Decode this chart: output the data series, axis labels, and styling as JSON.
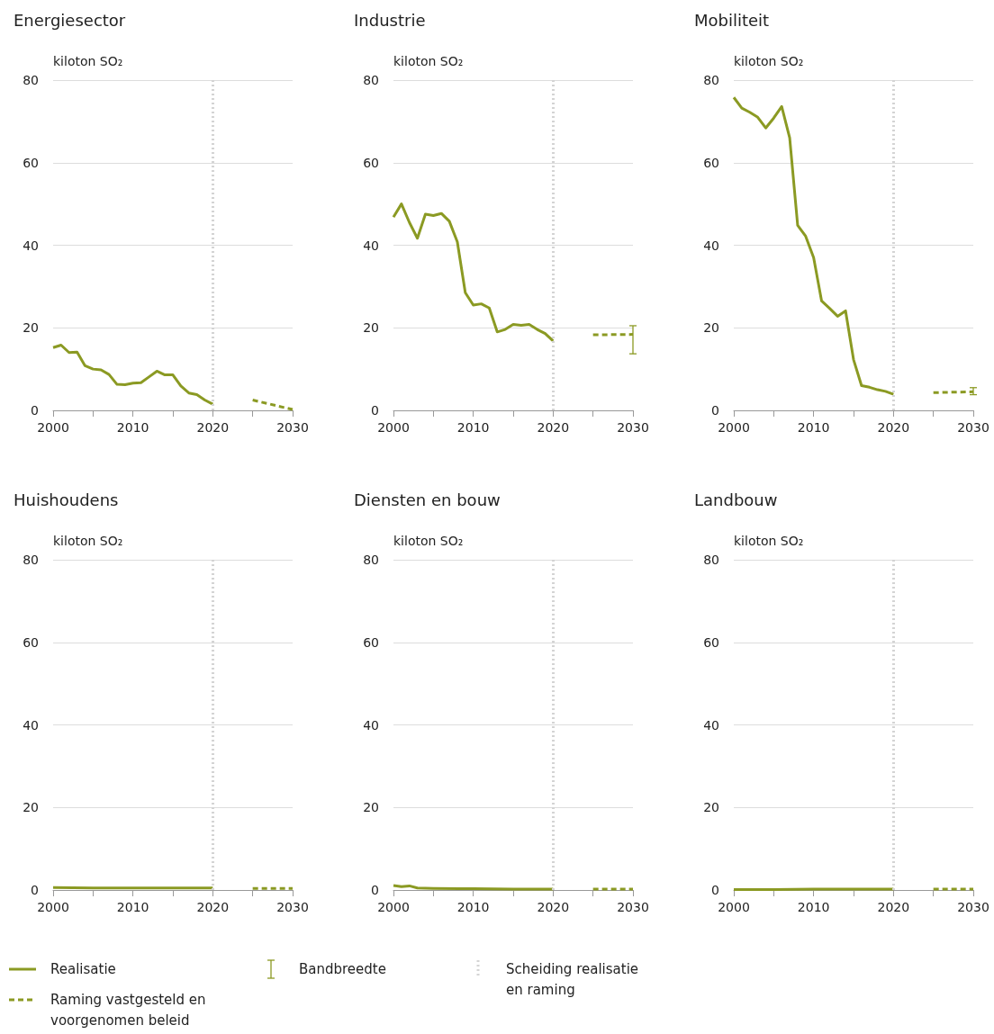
{
  "chart_data": [
    {
      "type": "line",
      "title": "Energiesector",
      "ylabel": "kiloton SO₂",
      "xlim": [
        2000,
        2030
      ],
      "xticks": [
        2000,
        {
          "value": 2005,
          "label": null
        },
        2010,
        {
          "value": 2015,
          "label": null
        },
        2020,
        {
          "value": 2025,
          "label": null
        },
        2030
      ],
      "ylim": [
        0,
        80
      ],
      "yticks": [
        0,
        20,
        40,
        60,
        80
      ],
      "grid": "y",
      "marker": "none",
      "legend": "bottom",
      "annotations": [
        "Bandbreedte"
      ],
      "ref_lines": [
        {
          "axis": "x",
          "value": 2020,
          "label": "Scheiding realisatie en raming",
          "color": "#d4d4d4",
          "line_style": "dotted"
        }
      ],
      "series": [
        {
          "name": "Realisatie",
          "color": "#8b9a23",
          "line_style": "solid",
          "x": [
            2000,
            2001,
            2002,
            2003,
            2004,
            2005,
            2006,
            2007,
            2008,
            2009,
            2010,
            2011,
            2012,
            2013,
            2014,
            2015,
            2016,
            2017,
            2018,
            2019,
            2020
          ],
          "values": [
            15.2,
            15.8,
            14.0,
            14.1,
            10.8,
            10.0,
            9.8,
            8.7,
            6.3,
            6.2,
            6.6,
            6.7,
            8.1,
            9.5,
            8.6,
            8.6,
            5.9,
            4.2,
            3.8,
            2.5,
            1.5
          ]
        },
        {
          "name": "Raming vastgesteld en voorgenomen beleid",
          "color": "#8b9a23",
          "line_style": "dashed",
          "x": [
            2025,
            2030
          ],
          "values": [
            2.5,
            0.2
          ]
        }
      ]
    },
    {
      "type": "line",
      "title": "Industrie",
      "ylabel": "kiloton SO₂",
      "xlim": [
        2000,
        2030
      ],
      "xticks": [
        2000,
        {
          "value": 2005,
          "label": null
        },
        2010,
        {
          "value": 2015,
          "label": null
        },
        2020,
        {
          "value": 2025,
          "label": null
        },
        2030
      ],
      "ylim": [
        0,
        80
      ],
      "yticks": [
        0,
        20,
        40,
        60,
        80
      ],
      "grid": "y",
      "marker": "none",
      "ref_lines": [
        {
          "axis": "x",
          "value": 2020,
          "label": null,
          "color": "#d4d4d4",
          "line_style": "dotted"
        }
      ],
      "series": [
        {
          "color": "#8b9a23",
          "line_style": "solid",
          "x": [
            2000,
            2001,
            2002,
            2003,
            2004,
            2005,
            2006,
            2007,
            2008,
            2009,
            2010,
            2011,
            2012,
            2013,
            2014,
            2015,
            2016,
            2017,
            2018,
            2019,
            2020
          ],
          "values": [
            46.8,
            50.0,
            45.5,
            41.7,
            47.5,
            47.2,
            47.7,
            45.8,
            40.8,
            28.5,
            25.5,
            25.8,
            24.8,
            19.0,
            19.6,
            20.8,
            20.6,
            20.8,
            19.6,
            18.6,
            16.8
          ]
        },
        {
          "color": "#8b9a23",
          "line_style": "dashed",
          "x": [
            2025,
            2030
          ],
          "values": [
            18.3,
            18.4
          ],
          "errors": [
            null,
            [
              13.7,
              20.5
            ]
          ]
        }
      ]
    },
    {
      "type": "line",
      "title": "Mobiliteit",
      "ylabel": "kiloton SO₂",
      "xlim": [
        2000,
        2030
      ],
      "xticks": [
        2000,
        {
          "value": 2005,
          "label": null
        },
        2010,
        {
          "value": 2015,
          "label": null
        },
        2020,
        {
          "value": 2025,
          "label": null
        },
        2030
      ],
      "ylim": [
        0,
        80
      ],
      "yticks": [
        0,
        20,
        40,
        60,
        80
      ],
      "grid": "y",
      "marker": "none",
      "ref_lines": [
        {
          "axis": "x",
          "value": 2020,
          "label": null,
          "color": "#d4d4d4",
          "line_style": "dotted"
        }
      ],
      "series": [
        {
          "color": "#8b9a23",
          "line_style": "solid",
          "x": [
            2000,
            2001,
            2002,
            2003,
            2004,
            2005,
            2006,
            2007,
            2008,
            2009,
            2010,
            2011,
            2012,
            2013,
            2014,
            2015,
            2016,
            2017,
            2018,
            2019,
            2020
          ],
          "values": [
            75.8,
            73.2,
            72.2,
            71.0,
            68.4,
            70.8,
            73.6,
            66.0,
            44.8,
            42.2,
            37.0,
            26.5,
            24.7,
            22.8,
            24.1,
            12.3,
            6.0,
            5.6,
            5.0,
            4.6,
            3.9
          ]
        },
        {
          "color": "#8b9a23",
          "line_style": "dashed",
          "x": [
            2025,
            2030
          ],
          "values": [
            4.3,
            4.5
          ],
          "errors": [
            null,
            [
              3.8,
              5.5
            ]
          ]
        }
      ]
    },
    {
      "type": "line",
      "title": "Huishoudens",
      "ylabel": "kiloton SO₂",
      "xlim": [
        2000,
        2030
      ],
      "xticks": [
        2000,
        {
          "value": 2005,
          "label": null
        },
        2010,
        {
          "value": 2015,
          "label": null
        },
        2020,
        {
          "value": 2025,
          "label": null
        },
        2030
      ],
      "ylim": [
        0,
        80
      ],
      "yticks": [
        0,
        20,
        40,
        60,
        80
      ],
      "grid": "y",
      "marker": "none",
      "ref_lines": [
        {
          "axis": "x",
          "value": 2020,
          "label": null,
          "color": "#d4d4d4",
          "line_style": "dotted"
        }
      ],
      "series": [
        {
          "color": "#8b9a23",
          "line_style": "solid",
          "x": [
            2000,
            2005,
            2010,
            2015,
            2020
          ],
          "values": [
            0.6,
            0.5,
            0.5,
            0.5,
            0.5
          ]
        },
        {
          "color": "#8b9a23",
          "line_style": "dashed",
          "x": [
            2025,
            2030
          ],
          "values": [
            0.4,
            0.4
          ]
        }
      ]
    },
    {
      "type": "line",
      "title": "Diensten en bouw",
      "ylabel": "kiloton SO₂",
      "xlim": [
        2000,
        2030
      ],
      "xticks": [
        2000,
        {
          "value": 2005,
          "label": null
        },
        2010,
        {
          "value": 2015,
          "label": null
        },
        2020,
        {
          "value": 2025,
          "label": null
        },
        2030
      ],
      "ylim": [
        0,
        80
      ],
      "yticks": [
        0,
        20,
        40,
        60,
        80
      ],
      "grid": "y",
      "marker": "none",
      "ref_lines": [
        {
          "axis": "x",
          "value": 2020,
          "label": null,
          "color": "#d4d4d4",
          "line_style": "dotted"
        }
      ],
      "series": [
        {
          "color": "#8b9a23",
          "line_style": "solid",
          "x": [
            2000,
            2001,
            2002,
            2003,
            2005,
            2010,
            2015,
            2020
          ],
          "values": [
            1.1,
            0.8,
            1.0,
            0.5,
            0.4,
            0.3,
            0.2,
            0.2
          ]
        },
        {
          "color": "#8b9a23",
          "line_style": "dashed",
          "x": [
            2025,
            2030
          ],
          "values": [
            0.2,
            0.2
          ]
        }
      ]
    },
    {
      "type": "line",
      "title": "Landbouw",
      "ylabel": "kiloton SO₂",
      "xlim": [
        2000,
        2030
      ],
      "xticks": [
        2000,
        {
          "value": 2005,
          "label": null
        },
        2010,
        {
          "value": 2015,
          "label": null
        },
        2020,
        {
          "value": 2025,
          "label": null
        },
        2030
      ],
      "ylim": [
        0,
        80
      ],
      "yticks": [
        0,
        20,
        40,
        60,
        80
      ],
      "grid": "y",
      "marker": "none",
      "ref_lines": [
        {
          "axis": "x",
          "value": 2020,
          "label": null,
          "color": "#d4d4d4",
          "line_style": "dotted"
        }
      ],
      "series": [
        {
          "color": "#8b9a23",
          "line_style": "solid",
          "x": [
            2000,
            2005,
            2010,
            2015,
            2020
          ],
          "values": [
            0.1,
            0.1,
            0.2,
            0.2,
            0.2
          ]
        },
        {
          "color": "#8b9a23",
          "line_style": "dashed",
          "x": [
            2025,
            2030
          ],
          "values": [
            0.2,
            0.2
          ]
        }
      ]
    }
  ]
}
